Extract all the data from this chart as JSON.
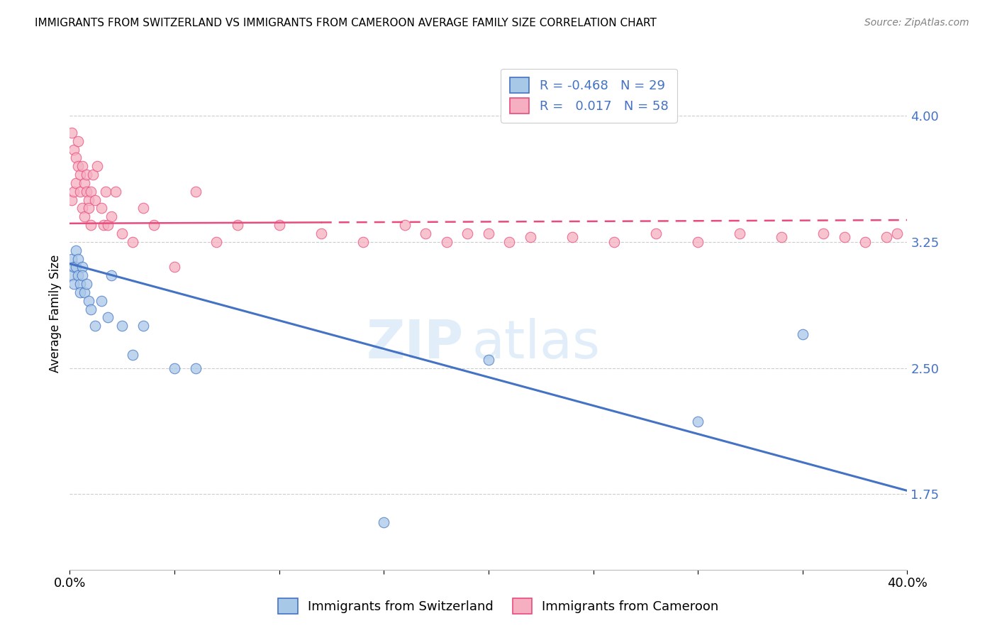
{
  "title": "IMMIGRANTS FROM SWITZERLAND VS IMMIGRANTS FROM CAMEROON AVERAGE FAMILY SIZE CORRELATION CHART",
  "source": "Source: ZipAtlas.com",
  "ylabel": "Average Family Size",
  "yticks": [
    1.75,
    2.5,
    3.25,
    4.0
  ],
  "ytick_labels": [
    "1.75",
    "2.50",
    "3.25",
    "4.00"
  ],
  "xticks": [
    0.0,
    0.05,
    0.1,
    0.15,
    0.2,
    0.25,
    0.3,
    0.35,
    0.4
  ],
  "xtick_labels": [
    "0.0%",
    "",
    "",
    "",
    "",
    "",
    "",
    "",
    "40.0%"
  ],
  "xlim": [
    0.0,
    0.4
  ],
  "ylim": [
    1.3,
    4.35
  ],
  "legend_labels": [
    "Immigrants from Switzerland",
    "Immigrants from Cameroon"
  ],
  "legend_r_switzerland": "-0.468",
  "legend_n_switzerland": "29",
  "legend_r_cameroon": "0.017",
  "legend_n_cameroon": "58",
  "color_switzerland": "#a8c8e8",
  "color_cameroon": "#f5afc0",
  "line_color_switzerland": "#4472C4",
  "line_color_cameroon": "#E84C7D",
  "watermark_zip": "ZIP",
  "watermark_atlas": "atlas",
  "background_color": "#ffffff",
  "grid_color": "#cccccc",
  "switzerland_x": [
    0.001,
    0.001,
    0.002,
    0.002,
    0.003,
    0.003,
    0.004,
    0.004,
    0.005,
    0.005,
    0.006,
    0.006,
    0.007,
    0.008,
    0.009,
    0.01,
    0.012,
    0.015,
    0.018,
    0.02,
    0.025,
    0.03,
    0.035,
    0.05,
    0.06,
    0.15,
    0.2,
    0.3,
    0.35
  ],
  "switzerland_y": [
    3.15,
    3.05,
    3.1,
    3.0,
    3.2,
    3.1,
    3.05,
    3.15,
    3.0,
    2.95,
    3.1,
    3.05,
    2.95,
    3.0,
    2.9,
    2.85,
    2.75,
    2.9,
    2.8,
    3.05,
    2.75,
    2.58,
    2.75,
    2.5,
    2.5,
    1.58,
    2.55,
    2.18,
    2.7
  ],
  "cameroon_x": [
    0.001,
    0.001,
    0.002,
    0.002,
    0.003,
    0.003,
    0.004,
    0.004,
    0.005,
    0.005,
    0.006,
    0.006,
    0.007,
    0.007,
    0.008,
    0.008,
    0.009,
    0.009,
    0.01,
    0.01,
    0.011,
    0.012,
    0.013,
    0.015,
    0.016,
    0.017,
    0.018,
    0.02,
    0.022,
    0.025,
    0.03,
    0.035,
    0.04,
    0.05,
    0.06,
    0.07,
    0.08,
    0.1,
    0.12,
    0.14,
    0.16,
    0.17,
    0.18,
    0.19,
    0.2,
    0.21,
    0.22,
    0.24,
    0.26,
    0.28,
    0.3,
    0.32,
    0.34,
    0.36,
    0.37,
    0.38,
    0.39,
    0.395
  ],
  "cameroon_y": [
    3.9,
    3.5,
    3.8,
    3.55,
    3.75,
    3.6,
    3.7,
    3.85,
    3.55,
    3.65,
    3.45,
    3.7,
    3.6,
    3.4,
    3.55,
    3.65,
    3.5,
    3.45,
    3.35,
    3.55,
    3.65,
    3.5,
    3.7,
    3.45,
    3.35,
    3.55,
    3.35,
    3.4,
    3.55,
    3.3,
    3.25,
    3.45,
    3.35,
    3.1,
    3.55,
    3.25,
    3.35,
    3.35,
    3.3,
    3.25,
    3.35,
    3.3,
    3.25,
    3.3,
    3.3,
    3.25,
    3.28,
    3.28,
    3.25,
    3.3,
    3.25,
    3.3,
    3.28,
    3.3,
    3.28,
    3.25,
    3.28,
    3.3
  ],
  "sw_line_x0": 0.0,
  "sw_line_y0": 3.12,
  "sw_line_x1": 0.4,
  "sw_line_y1": 1.77,
  "cm_line_x0": 0.0,
  "cm_line_y0": 3.36,
  "cm_line_x1": 0.4,
  "cm_line_y1": 3.38,
  "cm_line_solid_end": 0.12
}
